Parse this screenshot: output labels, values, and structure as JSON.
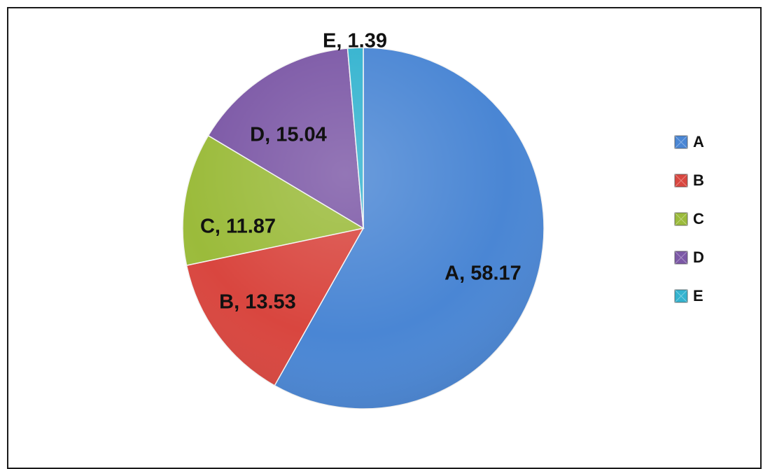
{
  "chart_data": {
    "type": "pie",
    "categories": [
      "A",
      "B",
      "C",
      "D",
      "E"
    ],
    "values": [
      58.17,
      13.53,
      11.87,
      15.04,
      1.39
    ],
    "labels": [
      "A, 58.17",
      "B, 13.53",
      "C, 11.87",
      "D, 15.04",
      "E, 1.39"
    ],
    "colors": [
      "#4a86d4",
      "#d9463f",
      "#9bbb3b",
      "#7c58a6",
      "#33b3cf"
    ],
    "legend": {
      "placement": "right",
      "entries": [
        "A",
        "B",
        "C",
        "D",
        "E"
      ]
    },
    "start_angle": "12 o'clock",
    "direction": "clockwise"
  }
}
